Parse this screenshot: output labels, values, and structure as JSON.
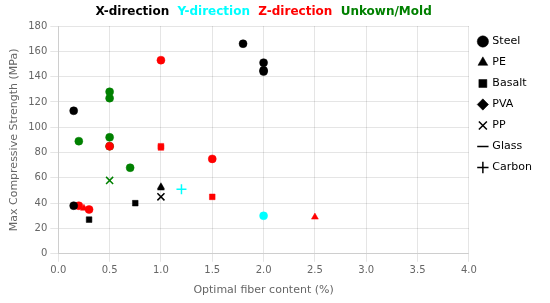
{
  "chart_data": {
    "type": "scatter",
    "xlabel": "Optimal fiber content (%)",
    "ylabel": "Max Compressive Strength (MPa)",
    "xlim": [
      0,
      4
    ],
    "ylim": [
      0,
      180
    ],
    "xticks": [
      {
        "value": 0,
        "label": "0.0"
      },
      0.5,
      {
        "value": 1,
        "label": "1.0"
      },
      1.5,
      {
        "value": 2,
        "label": "2.0"
      },
      2.5,
      {
        "value": 3,
        "label": "3.0"
      },
      3.5,
      {
        "value": 4,
        "label": "4.0"
      }
    ],
    "yticks": [
      0,
      20,
      40,
      60,
      80,
      100,
      120,
      140,
      160,
      180
    ],
    "grid": true,
    "series": [
      {
        "name": "X-direction",
        "color": "black",
        "x": [
          0.15,
          0.15,
          0.3,
          0.75,
          1.0,
          1.0,
          1.0,
          1.8,
          2.0,
          2.0,
          2.0
        ],
        "values": [
          113,
          38,
          27,
          40,
          53,
          52,
          45,
          166,
          151,
          145,
          144
        ],
        "markers": [
          "circle",
          "circle",
          "square",
          "square",
          "triangle",
          "triangle",
          "x",
          "circle",
          "circle",
          "circle",
          "circle"
        ]
      },
      {
        "name": "Y-direction",
        "color": "cyan",
        "x": [
          1.2,
          2.0
        ],
        "values": [
          51,
          30
        ],
        "markers": [
          "plus",
          "circle"
        ]
      },
      {
        "name": "Z-direction",
        "color": "red",
        "x": [
          0.2,
          0.25,
          0.3,
          0.5,
          1.0,
          1.0,
          1.0,
          1.5,
          1.5,
          2.5
        ],
        "values": [
          38,
          36,
          35,
          85,
          153,
          85,
          84,
          75,
          45,
          29
        ],
        "markers": [
          "circle",
          "triangle",
          "circle",
          "circle",
          "circle",
          "square",
          "square",
          "circle",
          "square",
          "triangle"
        ]
      },
      {
        "name": "Unkown/Mold",
        "color": "green",
        "x": [
          0.2,
          0.5,
          0.5,
          0.5,
          0.5,
          0.5,
          0.7
        ],
        "values": [
          89,
          128,
          123,
          92,
          85,
          58,
          68
        ],
        "markers": [
          "circle",
          "circle",
          "circle",
          "circle",
          "circle",
          "x",
          "circle"
        ]
      }
    ],
    "marker_legend": [
      {
        "name": "Steel",
        "marker": "circle"
      },
      {
        "name": "PE",
        "marker": "triangle"
      },
      {
        "name": "Basalt",
        "marker": "square"
      },
      {
        "name": "PVA",
        "marker": "diamond"
      },
      {
        "name": "PP",
        "marker": "x"
      },
      {
        "name": "Glass",
        "marker": "line"
      },
      {
        "name": "Carbon",
        "marker": "plus"
      }
    ]
  }
}
